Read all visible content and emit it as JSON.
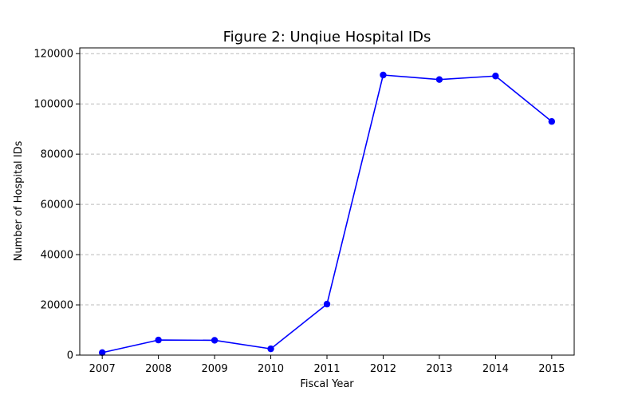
{
  "chart_data": {
    "type": "line",
    "title": "Figure 2: Unqiue Hospital IDs",
    "xlabel": "Fiscal Year",
    "ylabel": "Number of Hospital IDs",
    "x": [
      2007,
      2008,
      2009,
      2010,
      2011,
      2012,
      2013,
      2014,
      2015
    ],
    "series": [
      {
        "values": [
          1000,
          6000,
          5900,
          2500,
          20300,
          111500,
          109700,
          111100,
          93000
        ],
        "color": "#0000ff",
        "marker": "circle"
      }
    ],
    "ylim": [
      0,
      120000
    ],
    "yticks": [
      0,
      20000,
      40000,
      60000,
      80000,
      100000,
      120000
    ],
    "ytick_labels": [
      "0",
      "20000",
      "40000",
      "60000",
      "80000",
      "100000",
      "120000"
    ],
    "xtick_labels": [
      "2007",
      "2008",
      "2009",
      "2010",
      "2011",
      "2012",
      "2013",
      "2014",
      "2015"
    ],
    "grid": "y-dashed",
    "grid_color": "#bbbbbb",
    "legend": "none"
  }
}
